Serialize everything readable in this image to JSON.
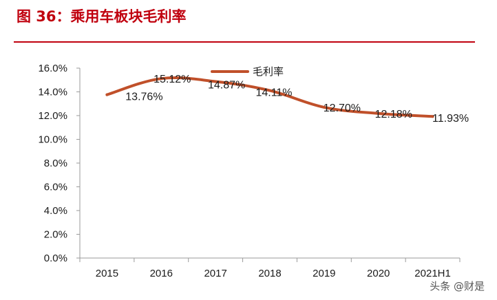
{
  "header": {
    "title": "图 36：乘用车板块毛利率"
  },
  "watermark": "头条 @财是",
  "colors": {
    "title": "#c0000e",
    "rule": "#c0000e",
    "series": "#c0502a",
    "axis": "#9a9a9a",
    "text": "#1a1a1a"
  },
  "chart_data": {
    "type": "line",
    "categories": [
      "2015",
      "2016",
      "2017",
      "2018",
      "2019",
      "2020",
      "2021H1"
    ],
    "series": [
      {
        "name": "毛利率",
        "values": [
          13.76,
          15.12,
          14.87,
          14.11,
          12.7,
          12.18,
          11.93
        ],
        "labels": [
          "13.76%",
          "15.12%",
          "14.87%",
          "14.11%",
          "12.70%",
          "12.18%",
          "11.93%"
        ]
      }
    ],
    "ylim": [
      0,
      16
    ],
    "yticks": [
      0,
      2,
      4,
      6,
      8,
      10,
      12,
      14,
      16
    ],
    "ytick_labels": [
      "0.0%",
      "2.0%",
      "4.0%",
      "6.0%",
      "8.0%",
      "10.0%",
      "12.0%",
      "14.0%",
      "16.0%"
    ],
    "grid": false,
    "legend": "top-center"
  }
}
